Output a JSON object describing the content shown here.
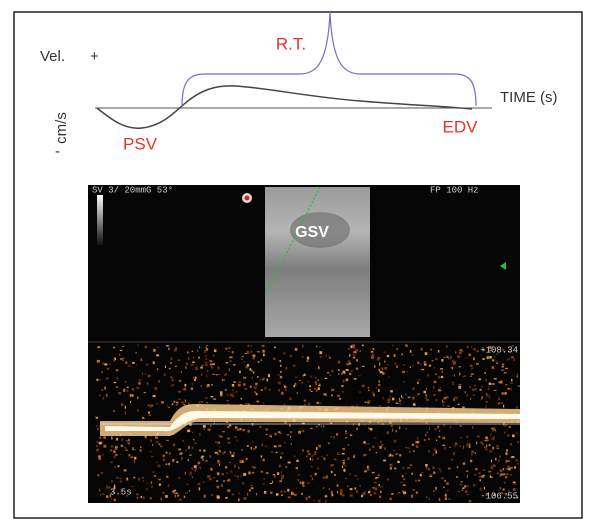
{
  "diagram": {
    "y_axis_label": "Vel.",
    "plus": "+",
    "minus": "-",
    "unit": "cm/s",
    "rt_label": "R.T.",
    "x_axis_label": "TIME (s)",
    "psv_label": "PSV",
    "edv_label": "EDV"
  },
  "ultrasound": {
    "header_left": "SV 3/ 20mmG 53°",
    "header_right": "FP 100 Hz",
    "vessel_label": "GSV",
    "scale_top": "+108.34",
    "scale_bottom": "-106.55",
    "sweep_time": "3.5s"
  }
}
